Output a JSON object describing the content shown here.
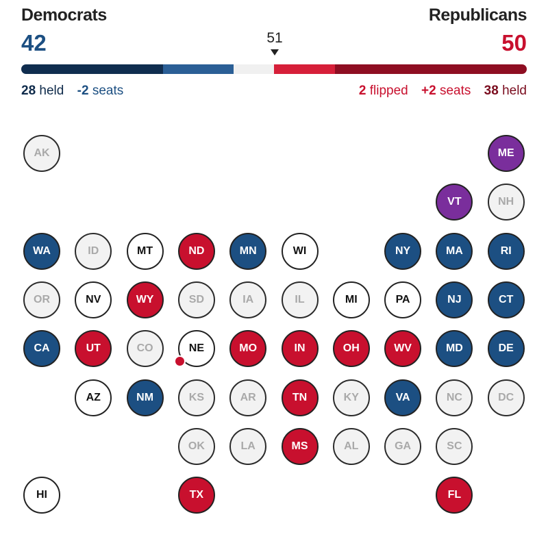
{
  "header": {
    "dem_label": "Democrats",
    "rep_label": "Republicans",
    "dem_total": "42",
    "rep_total": "50",
    "majority": "51"
  },
  "seat_bar": {
    "segments": [
      {
        "name": "dem-held",
        "seats": 28,
        "color": "#102d4f"
      },
      {
        "name": "dem-won",
        "seats": 14,
        "color": "#2b5f96"
      },
      {
        "name": "undecided",
        "seats": 8,
        "color": "#f0f0f0"
      },
      {
        "name": "rep-won",
        "seats": 12,
        "color": "#d61f39"
      },
      {
        "name": "rep-held",
        "seats": 38,
        "color": "#8e0e22"
      }
    ]
  },
  "dem_summary": {
    "held_num": "28",
    "held_text": "held",
    "seats_num": "-2",
    "seats_text": "seats"
  },
  "rep_summary": {
    "flipped_num": "2",
    "flipped_text": "flipped",
    "seats_num": "+2",
    "seats_text": "seats",
    "held_num": "38",
    "held_text": "held"
  },
  "colors": {
    "dem": "#1c4f82",
    "rep": "#c8102e",
    "ind": "#7a2e9c",
    "none": "#f2f2f2",
    "pending": "#ffffff"
  },
  "states": [
    {
      "abbr": "AK",
      "row": 0,
      "col": 0,
      "status": "none"
    },
    {
      "abbr": "ME",
      "row": 0,
      "col": 9,
      "status": "ind"
    },
    {
      "abbr": "VT",
      "row": 1,
      "col": 8,
      "status": "ind"
    },
    {
      "abbr": "NH",
      "row": 1,
      "col": 9,
      "status": "none"
    },
    {
      "abbr": "WA",
      "row": 2,
      "col": 0,
      "status": "dem"
    },
    {
      "abbr": "ID",
      "row": 2,
      "col": 1,
      "status": "none"
    },
    {
      "abbr": "MT",
      "row": 2,
      "col": 2,
      "status": "pending"
    },
    {
      "abbr": "ND",
      "row": 2,
      "col": 3,
      "status": "rep"
    },
    {
      "abbr": "MN",
      "row": 2,
      "col": 4,
      "status": "dem"
    },
    {
      "abbr": "WI",
      "row": 2,
      "col": 5,
      "status": "pending"
    },
    {
      "abbr": "NY",
      "row": 2,
      "col": 7,
      "status": "dem"
    },
    {
      "abbr": "MA",
      "row": 2,
      "col": 8,
      "status": "dem"
    },
    {
      "abbr": "RI",
      "row": 2,
      "col": 9,
      "status": "dem"
    },
    {
      "abbr": "OR",
      "row": 3,
      "col": 0,
      "status": "none"
    },
    {
      "abbr": "NV",
      "row": 3,
      "col": 1,
      "status": "pending"
    },
    {
      "abbr": "WY",
      "row": 3,
      "col": 2,
      "status": "rep"
    },
    {
      "abbr": "SD",
      "row": 3,
      "col": 3,
      "status": "none"
    },
    {
      "abbr": "IA",
      "row": 3,
      "col": 4,
      "status": "none"
    },
    {
      "abbr": "IL",
      "row": 3,
      "col": 5,
      "status": "none"
    },
    {
      "abbr": "MI",
      "row": 3,
      "col": 6,
      "status": "pending"
    },
    {
      "abbr": "PA",
      "row": 3,
      "col": 7,
      "status": "pending"
    },
    {
      "abbr": "NJ",
      "row": 3,
      "col": 8,
      "status": "dem"
    },
    {
      "abbr": "CT",
      "row": 3,
      "col": 9,
      "status": "dem"
    },
    {
      "abbr": "CA",
      "row": 4,
      "col": 0,
      "status": "dem"
    },
    {
      "abbr": "UT",
      "row": 4,
      "col": 1,
      "status": "rep"
    },
    {
      "abbr": "CO",
      "row": 4,
      "col": 2,
      "status": "none"
    },
    {
      "abbr": "NE",
      "row": 4,
      "col": 3,
      "status": "pending",
      "flip_dot": true
    },
    {
      "abbr": "MO",
      "row": 4,
      "col": 4,
      "status": "rep"
    },
    {
      "abbr": "IN",
      "row": 4,
      "col": 5,
      "status": "rep"
    },
    {
      "abbr": "OH",
      "row": 4,
      "col": 6,
      "status": "rep"
    },
    {
      "abbr": "WV",
      "row": 4,
      "col": 7,
      "status": "rep"
    },
    {
      "abbr": "MD",
      "row": 4,
      "col": 8,
      "status": "dem"
    },
    {
      "abbr": "DE",
      "row": 4,
      "col": 9,
      "status": "dem"
    },
    {
      "abbr": "AZ",
      "row": 5,
      "col": 1,
      "status": "pending"
    },
    {
      "abbr": "NM",
      "row": 5,
      "col": 2,
      "status": "dem"
    },
    {
      "abbr": "KS",
      "row": 5,
      "col": 3,
      "status": "none"
    },
    {
      "abbr": "AR",
      "row": 5,
      "col": 4,
      "status": "none"
    },
    {
      "abbr": "TN",
      "row": 5,
      "col": 5,
      "status": "rep"
    },
    {
      "abbr": "KY",
      "row": 5,
      "col": 6,
      "status": "none"
    },
    {
      "abbr": "VA",
      "row": 5,
      "col": 7,
      "status": "dem"
    },
    {
      "abbr": "NC",
      "row": 5,
      "col": 8,
      "status": "none"
    },
    {
      "abbr": "DC",
      "row": 5,
      "col": 9,
      "status": "none"
    },
    {
      "abbr": "OK",
      "row": 6,
      "col": 3,
      "status": "none"
    },
    {
      "abbr": "LA",
      "row": 6,
      "col": 4,
      "status": "none"
    },
    {
      "abbr": "MS",
      "row": 6,
      "col": 5,
      "status": "rep"
    },
    {
      "abbr": "AL",
      "row": 6,
      "col": 6,
      "status": "none"
    },
    {
      "abbr": "GA",
      "row": 6,
      "col": 7,
      "status": "none"
    },
    {
      "abbr": "SC",
      "row": 6,
      "col": 8,
      "status": "none"
    },
    {
      "abbr": "HI",
      "row": 7,
      "col": 0,
      "status": "pending"
    },
    {
      "abbr": "TX",
      "row": 7,
      "col": 3,
      "status": "rep"
    },
    {
      "abbr": "FL",
      "row": 7,
      "col": 8,
      "status": "rep"
    }
  ]
}
